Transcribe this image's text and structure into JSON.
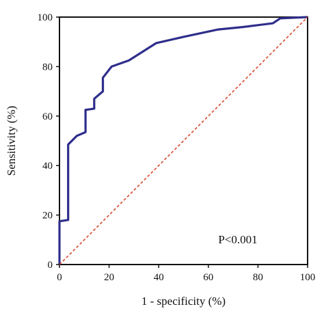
{
  "chart_data": {
    "type": "line",
    "title": "",
    "xlabel": "1 - specificity (%)",
    "ylabel": "Sensitivity (%)",
    "xlim": [
      0,
      100
    ],
    "ylim": [
      0,
      100
    ],
    "xticks": [
      0,
      20,
      40,
      60,
      80,
      100
    ],
    "yticks": [
      0,
      20,
      40,
      60,
      80,
      100
    ],
    "tick_labels_x": [
      "0",
      "20",
      "40",
      "60",
      "80",
      "100"
    ],
    "tick_labels_y": [
      "0",
      "20",
      "40",
      "60",
      "80",
      "100"
    ],
    "grid": false,
    "legend": "none",
    "annotation": "P<0.001",
    "series": [
      {
        "style": "solid",
        "color": "#2e2e8c",
        "x": [
          0,
          0,
          3.5,
          3.5,
          7,
          10.5,
          10.5,
          14,
          14,
          17.5,
          17.5,
          21,
          28,
          39,
          50,
          64,
          74,
          86,
          89,
          100
        ],
        "y": [
          0,
          17.5,
          18,
          48.5,
          52,
          53.5,
          62.5,
          63,
          67,
          70,
          75.5,
          80,
          82.5,
          89.5,
          92,
          95,
          96,
          97.5,
          99.5,
          100
        ]
      },
      {
        "style": "dashed",
        "color": "#d9432b",
        "x": [
          0,
          100
        ],
        "y": [
          0,
          100
        ]
      }
    ]
  }
}
